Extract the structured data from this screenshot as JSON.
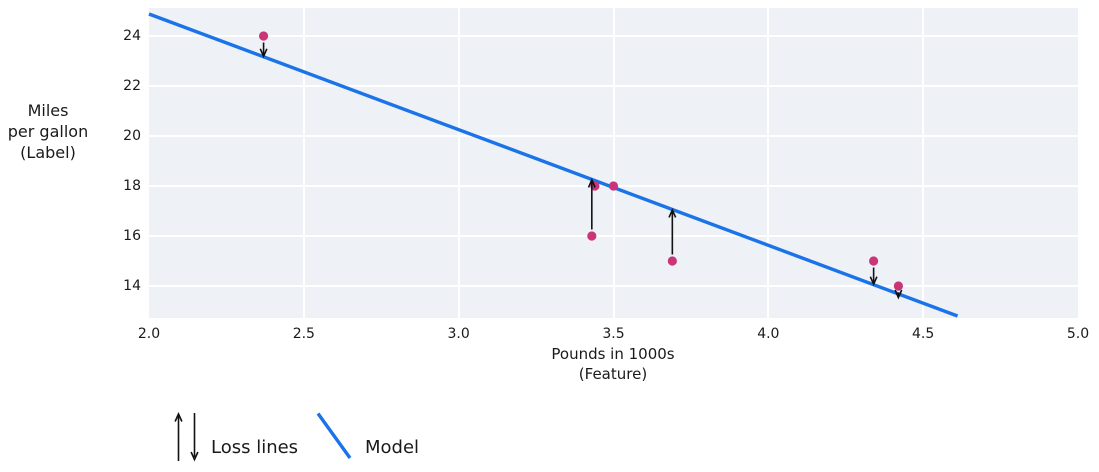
{
  "chart_data": {
    "type": "scatter",
    "title": "",
    "xlabel_lines": [
      "Pounds in 1000s",
      "(Feature)"
    ],
    "ylabel_lines": [
      "Miles",
      "per gallon",
      "(Label)"
    ],
    "x_ticks": [
      2.0,
      2.5,
      3.0,
      3.5,
      4.0,
      4.5,
      5.0
    ],
    "x_tick_labels": [
      "2.0",
      "2.5",
      "3.0",
      "3.5",
      "4.0",
      "4.5",
      "5.0"
    ],
    "y_ticks": [
      24,
      22,
      20,
      18,
      16,
      14
    ],
    "y_tick_labels": [
      "24",
      "22",
      "20",
      "18",
      "16",
      "14"
    ],
    "xlim": [
      2.0,
      5.0
    ],
    "ylim": [
      12.72,
      25.12
    ],
    "grid": true,
    "legend_position": "bottom-left",
    "points": [
      {
        "x": 2.37,
        "y": 24
      },
      {
        "x": 3.5,
        "y": 18
      },
      {
        "x": 3.44,
        "y": 18
      },
      {
        "x": 3.43,
        "y": 16
      },
      {
        "x": 3.69,
        "y": 15
      },
      {
        "x": 4.34,
        "y": 15
      },
      {
        "x": 4.42,
        "y": 14
      }
    ],
    "model_line": {
      "x1": 2.0,
      "y1": 24.88,
      "x2": 4.611,
      "y2": 12.8
    },
    "loss_arrows": [
      {
        "x": 2.37,
        "from_y": 24
      },
      {
        "x": 3.43,
        "from_y": 16
      },
      {
        "x": 3.69,
        "from_y": 15
      },
      {
        "x": 4.34,
        "from_y": 15
      },
      {
        "x": 4.42,
        "from_y": 14
      }
    ],
    "legend": {
      "items": [
        {
          "symbol": "loss-arrows",
          "label": "Loss lines"
        },
        {
          "symbol": "model-line",
          "label": "Model"
        }
      ]
    },
    "colors": {
      "point": "#c93577",
      "model": "#1a73e8",
      "arrow": "#111111",
      "plot_bg": "#eef1f6",
      "grid": "#ffffff",
      "text": "#1a1a1a"
    }
  }
}
